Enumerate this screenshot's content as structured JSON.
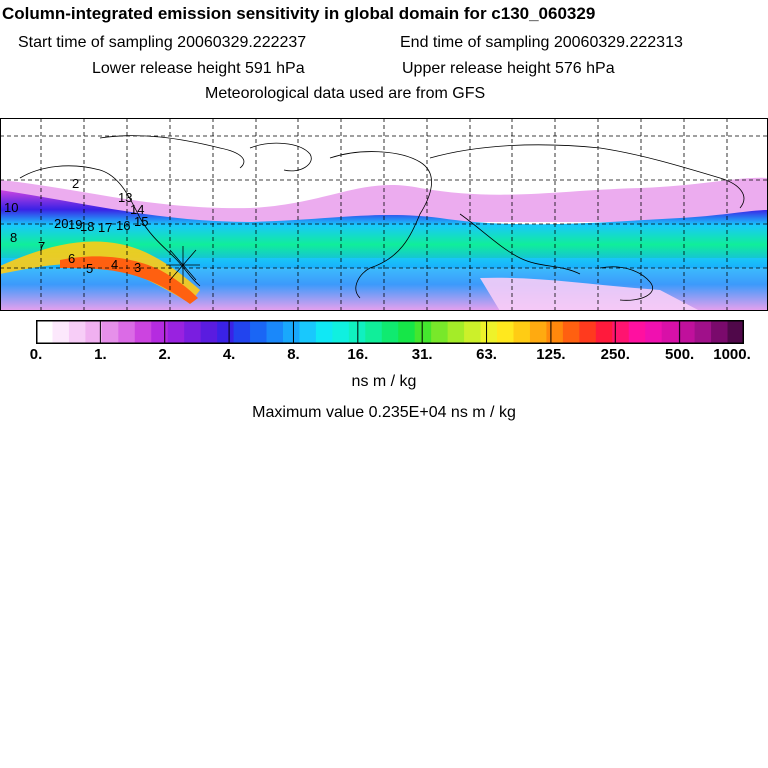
{
  "title": "Column-integrated emission sensitivity in global domain for c130_060329",
  "sampling": {
    "start": "Start time of sampling 20060329.222237",
    "end": "End time of sampling 20060329.222313"
  },
  "release": {
    "lower": "Lower release height  591 hPa",
    "upper": "Upper release height  576 hPa"
  },
  "met_note": "Meteorological data used are from GFS",
  "map": {
    "trajectory_labels": [
      "13",
      "14",
      "15",
      "16",
      "17",
      "18",
      "19",
      "20",
      "8",
      "7",
      "6",
      "5",
      "4",
      "3",
      "10",
      "2"
    ]
  },
  "colorbar": {
    "labels": [
      "0.",
      "1.",
      "2.",
      "4.",
      "8.",
      "16.",
      "31.",
      "63.",
      "125.",
      "250.",
      "500.",
      "1000."
    ],
    "colors": [
      "#ffffff",
      "#fce8fc",
      "#f7cdf7",
      "#f0b0f0",
      "#e690ea",
      "#db6be6",
      "#cc44e0",
      "#b52be0",
      "#9922e0",
      "#7a1ee0",
      "#5a1ce0",
      "#3a22e6",
      "#2244ee",
      "#1a66f5",
      "#1a88fa",
      "#19a8fc",
      "#19c8fd",
      "#10e8f5",
      "#10f0e0",
      "#10f0c0",
      "#10ee9a",
      "#10ea70",
      "#16e648",
      "#44e62e",
      "#78e82a",
      "#a4ec28",
      "#ccf02a",
      "#eef22a",
      "#ffe81e",
      "#ffcc14",
      "#ffaa10",
      "#ff880c",
      "#ff6010",
      "#ff3a1e",
      "#ff1a3c",
      "#ff1470",
      "#ff10a0",
      "#f010b0",
      "#d810a8",
      "#c0109c",
      "#a0108a",
      "#7a0a6c",
      "#50084a"
    ]
  },
  "units": "ns m / kg",
  "max_value": "Maximum value  0.235E+04 ns m / kg"
}
